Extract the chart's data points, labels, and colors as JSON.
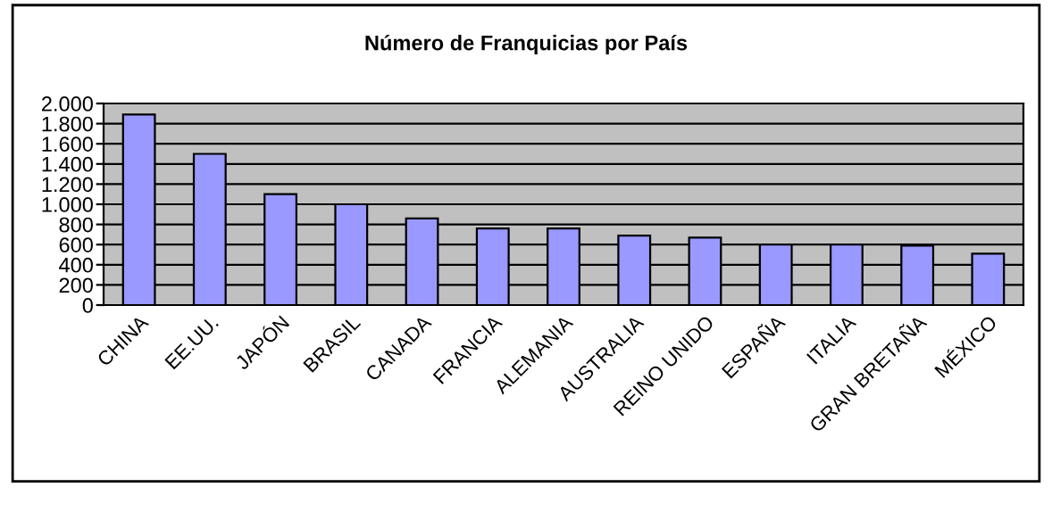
{
  "chart_data": {
    "type": "bar",
    "title": "Número de Franquicias por País",
    "categories": [
      "CHINA",
      "EE.UU.",
      "JAPÓN",
      "BRASIL",
      "CANADA",
      "FRANCIA",
      "ALEMANIA",
      "AUSTRALIA",
      "REINO UNIDO",
      "ESPAÑA",
      "ITALIA",
      "GRAN BRETAÑA",
      "MÉXICO"
    ],
    "values": [
      1890,
      1500,
      1100,
      1000,
      860,
      760,
      760,
      690,
      670,
      600,
      600,
      590,
      510
    ],
    "color": "#9999ff",
    "ylim": [
      0,
      2000
    ],
    "yticks": [
      0,
      200,
      400,
      600,
      800,
      {
        "value": 1000,
        "label": "1.000"
      },
      {
        "value": 1200,
        "label": "1.200"
      },
      {
        "value": 1400,
        "label": "1.400"
      },
      {
        "value": 1600,
        "label": "1.600"
      },
      {
        "value": 1800,
        "label": "1.800"
      },
      {
        "value": 2000,
        "label": "2.000"
      }
    ],
    "grid": "y",
    "legend": false
  }
}
